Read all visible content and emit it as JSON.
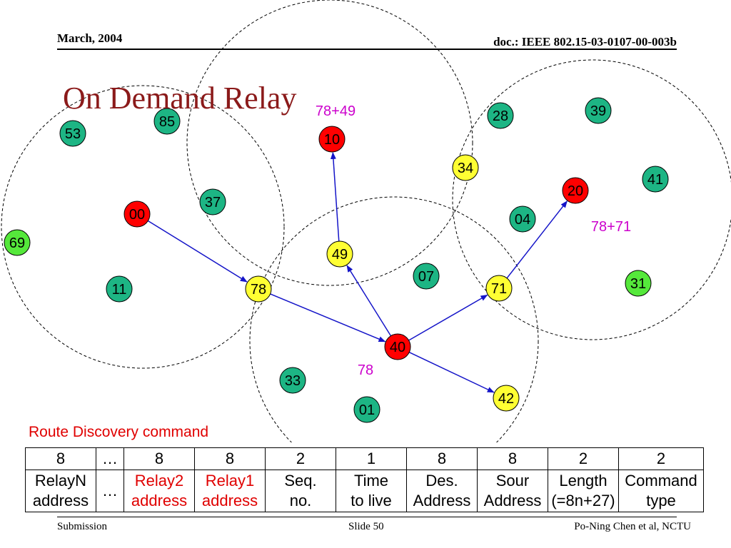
{
  "header": {
    "date": "March, 2004",
    "doc": "doc.: IEEE 802.15-03-0107-00-003b"
  },
  "title": "On Demand Relay",
  "colors": {
    "red": "#ff0000",
    "green": "#1db584",
    "lightgreen": "#55e83b",
    "yellow": "#ffff33",
    "arrow": "#1414c8",
    "annot": "#cc00cc",
    "title": "#8b1a1a"
  },
  "nodes": [
    {
      "id": "53",
      "color": "green"
    },
    {
      "id": "85",
      "color": "green"
    },
    {
      "id": "10",
      "color": "red"
    },
    {
      "id": "28",
      "color": "green"
    },
    {
      "id": "39",
      "color": "green"
    },
    {
      "id": "34",
      "color": "yellow"
    },
    {
      "id": "20",
      "color": "red"
    },
    {
      "id": "41",
      "color": "green"
    },
    {
      "id": "37",
      "color": "green"
    },
    {
      "id": "00",
      "color": "red"
    },
    {
      "id": "04",
      "color": "green"
    },
    {
      "id": "69",
      "color": "lightgreen"
    },
    {
      "id": "49",
      "color": "yellow"
    },
    {
      "id": "07",
      "color": "green"
    },
    {
      "id": "11",
      "color": "green"
    },
    {
      "id": "78",
      "color": "yellow"
    },
    {
      "id": "71",
      "color": "yellow"
    },
    {
      "id": "31",
      "color": "lightgreen"
    },
    {
      "id": "40",
      "color": "red"
    },
    {
      "id": "33",
      "color": "green"
    },
    {
      "id": "42",
      "color": "yellow"
    },
    {
      "id": "01",
      "color": "green"
    }
  ],
  "arrows": [
    {
      "from": "00",
      "to": "78"
    },
    {
      "from": "78",
      "to": "40"
    },
    {
      "from": "40",
      "to": "49"
    },
    {
      "from": "49",
      "to": "10"
    },
    {
      "from": "40",
      "to": "71"
    },
    {
      "from": "71",
      "to": "20"
    },
    {
      "from": "40",
      "to": "42"
    }
  ],
  "annotations": [
    "78+49",
    "78+71",
    "78"
  ],
  "caption": "Route Discovery command",
  "table": {
    "sizes": [
      "8",
      "…",
      "8",
      "8",
      "2",
      "1",
      "8",
      "8",
      "2",
      "2"
    ],
    "fields": [
      {
        "line1": "RelayN",
        "line2": "address",
        "red": false
      },
      {
        "line1": "…",
        "line2": "",
        "red": false
      },
      {
        "line1": "Relay2",
        "line2": "address",
        "red": true
      },
      {
        "line1": "Relay1",
        "line2": "address",
        "red": true
      },
      {
        "line1": "Seq.",
        "line2": "no.",
        "red": false
      },
      {
        "line1": "Time",
        "line2": "to live",
        "red": false
      },
      {
        "line1": "Des.",
        "line2": "Address",
        "red": false
      },
      {
        "line1": "Sour",
        "line2": "Address",
        "red": false
      },
      {
        "line1": "Length",
        "line2": "(=8n+27)",
        "red": false
      },
      {
        "line1": "Command",
        "line2": "type",
        "red": false
      }
    ]
  },
  "footer": {
    "left": "Submission",
    "center": "Slide 50",
    "right": "Po-Ning Chen et al, NCTU"
  }
}
